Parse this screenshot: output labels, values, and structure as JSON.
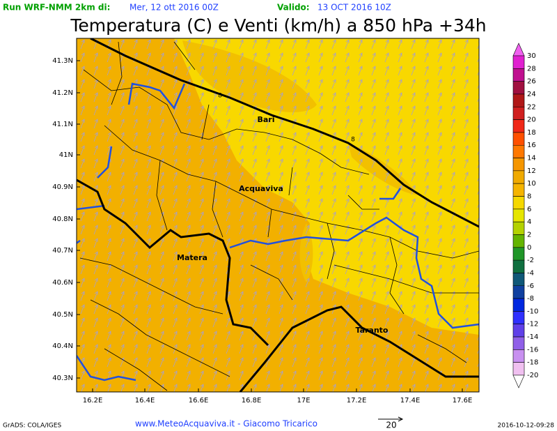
{
  "header": {
    "run_label": "Run WRF-NMM 2km di:",
    "run_date": "Mer, 12 ott 2016 00Z",
    "valid_label": "Valido:",
    "valid_date": "13 OCT 2016 10Z"
  },
  "title": "Temperatura (C) e Venti (km/h) a 850 hPa +34h",
  "map": {
    "lat_labels": [
      "41.3N",
      "41.2N",
      "41.1N",
      "41N",
      "40.9N",
      "40.8N",
      "40.7N",
      "40.6N",
      "40.5N",
      "40.4N",
      "40.3N"
    ],
    "lon_labels": [
      "16.2E",
      "16.4E",
      "16.6E",
      "16.8E",
      "17E",
      "17.2E",
      "17.4E",
      "17.6E"
    ],
    "places": [
      "Bari",
      "Acquaviva",
      "Matera",
      "Taranto"
    ],
    "contour_labels": [
      "8",
      "8"
    ]
  },
  "colorbar": {
    "labels": [
      30,
      28,
      26,
      24,
      22,
      20,
      18,
      16,
      14,
      12,
      10,
      8,
      6,
      4,
      2,
      0,
      -2,
      -4,
      -6,
      -8,
      -10,
      -12,
      -14,
      -16,
      -18,
      -20
    ],
    "colors": [
      "#f060f0",
      "#e020d0",
      "#c01090",
      "#a01040",
      "#b01818",
      "#d02020",
      "#f02818",
      "#ff5000",
      "#ff7800",
      "#f59600",
      "#f0aa00",
      "#f5b400",
      "#f5d800",
      "#e6e600",
      "#b4d200",
      "#64b400",
      "#209628",
      "#107040",
      "#105878",
      "#1040a0",
      "#0028e0",
      "#3030ff",
      "#6040e8",
      "#9060e8",
      "#c890f0",
      "#f0c0f0",
      "#ffffff"
    ]
  },
  "footer": {
    "software": "GrADS: COLA/IGES",
    "credit": "www.MeteoAcquaviva.it - Giacomo Tricarico",
    "vector_scale": "20",
    "timestamp": "2016-10-12-09:28"
  }
}
